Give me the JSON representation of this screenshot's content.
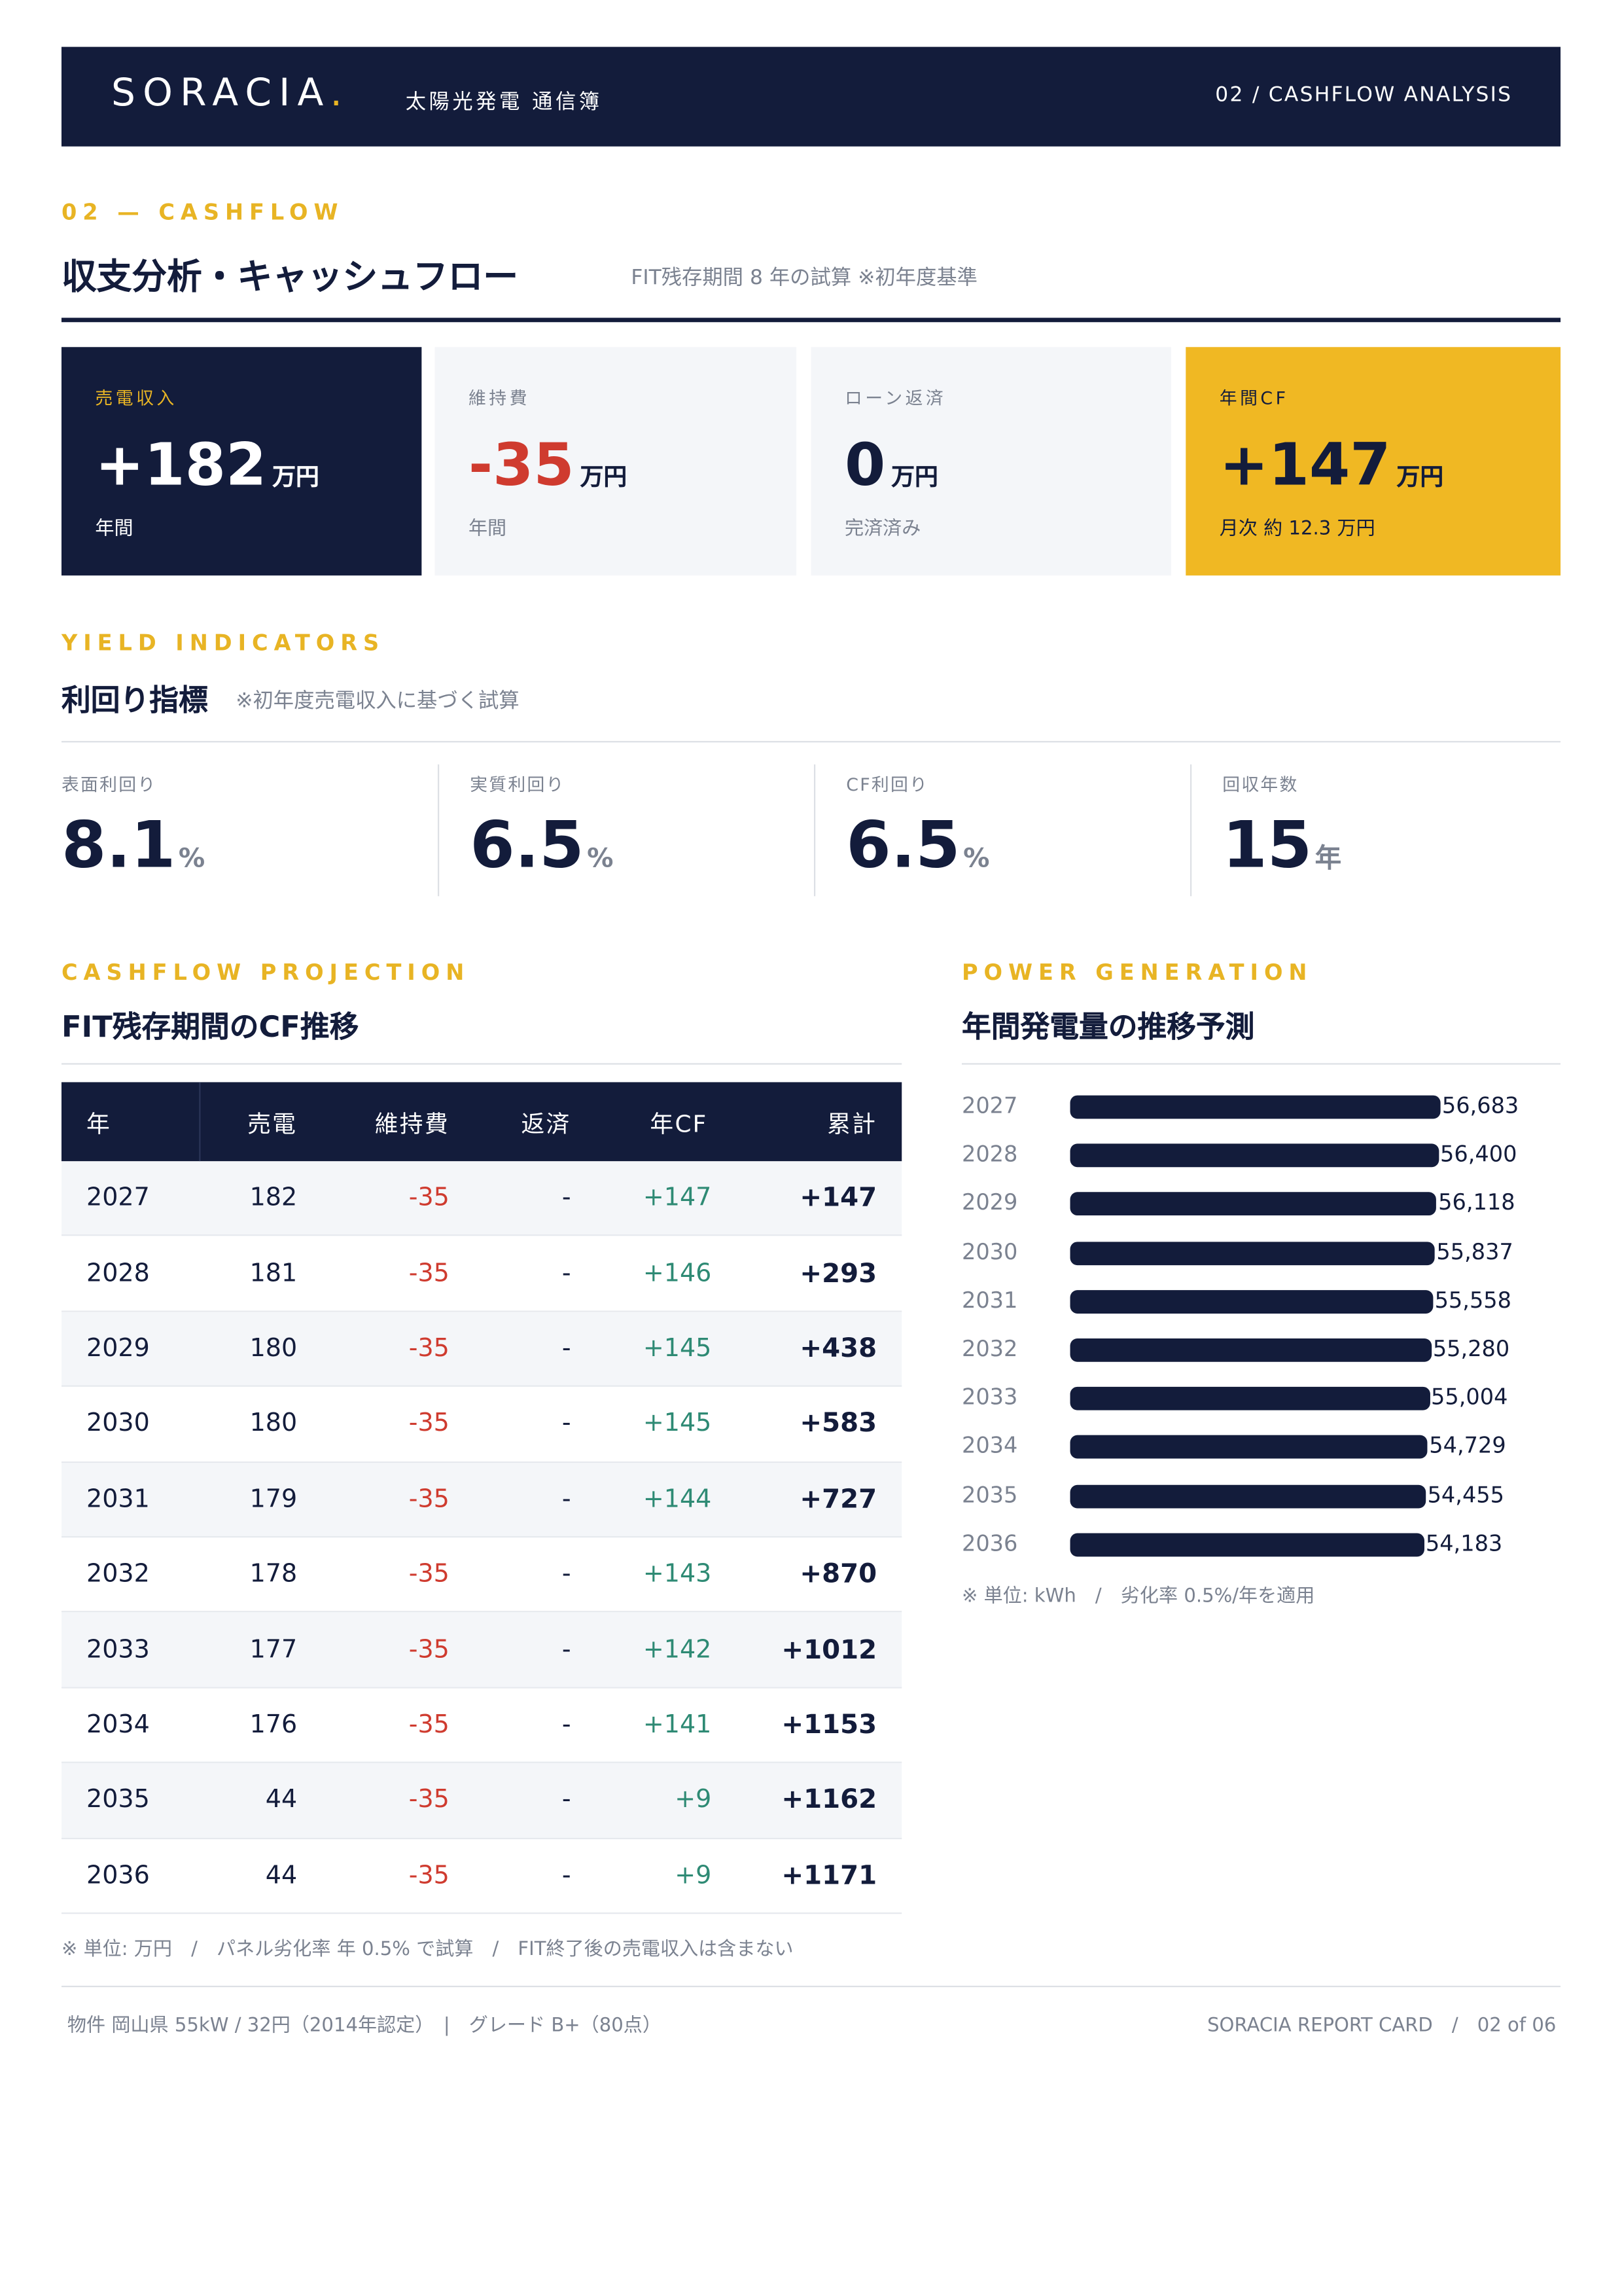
{
  "header": {
    "brand": "SORACIA",
    "brand_mark": ".",
    "subtitle": "太陽光発電 通信簿",
    "page_label": "02 / CASHFLOW ANALYSIS"
  },
  "section": {
    "eyebrow": "02 — CASHFLOW",
    "title": "収支分析・キャッシュフロー",
    "note": "FIT残存期間 8 年の試算 ※初年度基準"
  },
  "kpis": [
    {
      "label": "売電収入",
      "value": "+182",
      "unit": "万円",
      "sub": "年間"
    },
    {
      "label": "維持費",
      "value": "-35",
      "unit": "万円",
      "sub": "年間"
    },
    {
      "label": "ローン返済",
      "value": "0",
      "unit": "万円",
      "sub": "完済済み"
    },
    {
      "label": "年間CF",
      "value": "+147",
      "unit": "万円",
      "sub": "月次 約 12.3 万円"
    }
  ],
  "yield": {
    "eyebrow": "YIELD INDICATORS",
    "title": "利回り指標",
    "note": "※初年度売電収入に基づく試算",
    "items": [
      {
        "label": "表面利回り",
        "value": "8.1",
        "unit": "%"
      },
      {
        "label": "実質利回り",
        "value": "6.5",
        "unit": "%"
      },
      {
        "label": "CF利回り",
        "value": "6.5",
        "unit": "%"
      },
      {
        "label": "回収年数",
        "value": "15",
        "unit": "年"
      }
    ]
  },
  "cashflow": {
    "eyebrow": "CASHFLOW PROJECTION",
    "title": "FIT残存期間のCF推移",
    "columns": [
      "年",
      "売電",
      "維持費",
      "返済",
      "年CF",
      "累計"
    ],
    "rows": [
      [
        "2027",
        "182",
        "-35",
        "-",
        "+147",
        "+147"
      ],
      [
        "2028",
        "181",
        "-35",
        "-",
        "+146",
        "+293"
      ],
      [
        "2029",
        "180",
        "-35",
        "-",
        "+145",
        "+438"
      ],
      [
        "2030",
        "180",
        "-35",
        "-",
        "+145",
        "+583"
      ],
      [
        "2031",
        "179",
        "-35",
        "-",
        "+144",
        "+727"
      ],
      [
        "2032",
        "178",
        "-35",
        "-",
        "+143",
        "+870"
      ],
      [
        "2033",
        "177",
        "-35",
        "-",
        "+142",
        "+1012"
      ],
      [
        "2034",
        "176",
        "-35",
        "-",
        "+141",
        "+1153"
      ],
      [
        "2035",
        "44",
        "-35",
        "-",
        "+9",
        "+1162"
      ],
      [
        "2036",
        "44",
        "-35",
        "-",
        "+9",
        "+1171"
      ]
    ],
    "footnote": "※ 単位: 万円　/　パネル劣化率 年 0.5% で試算　/　FIT終了後の売電収入は含まない"
  },
  "power": {
    "eyebrow": "POWER GENERATION",
    "title": "年間発電量の推移予測",
    "color": "#131c3b",
    "categories": [
      "2027",
      "2028",
      "2029",
      "2030",
      "2031",
      "2032",
      "2033",
      "2034",
      "2035",
      "2036"
    ],
    "values": [
      56683,
      56400,
      56118,
      55837,
      55558,
      55280,
      55004,
      54729,
      54455,
      54183
    ],
    "value_labels": [
      "56,683",
      "56,400",
      "56,118",
      "55,837",
      "55,558",
      "55,280",
      "55,004",
      "54,729",
      "54,455",
      "54,183"
    ],
    "footnote": "※ 単位: kWh　/　劣化率 0.5%/年を適用"
  },
  "footer": {
    "property": "物件 岡山県 55kW / 32円（2014年認定）　|　グレード B+（80点）",
    "report": "SORACIA REPORT CARD　/　02 of 06"
  }
}
